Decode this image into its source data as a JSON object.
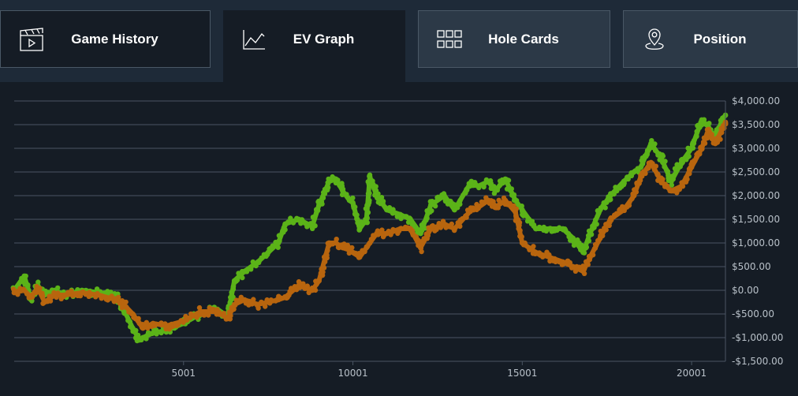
{
  "tabs": [
    {
      "label": "Game History",
      "icon": "clapperboard-icon"
    },
    {
      "label": "EV Graph",
      "icon": "line-chart-icon"
    },
    {
      "label": "Hole Cards",
      "icon": "grid-icon"
    },
    {
      "label": "Position",
      "icon": "location-pin-icon"
    }
  ],
  "colors": {
    "green_series": "#5bb318",
    "orange_series": "#b8650e",
    "grid": "#4a5563",
    "background": "#151c25"
  },
  "chart_data": {
    "type": "scatter",
    "xlabel": "",
    "ylabel": "",
    "xlim": [
      1,
      21000
    ],
    "ylim": [
      -1500,
      4000
    ],
    "x_ticks": [
      5001,
      10001,
      15001,
      20001
    ],
    "x_tick_labels": [
      "5001",
      "10001",
      "15001",
      "20001"
    ],
    "y_ticks": [
      -1500,
      -1000,
      -500,
      0,
      500,
      1000,
      1500,
      2000,
      2500,
      3000,
      3500,
      4000
    ],
    "y_tick_labels": [
      "-$1,500.00",
      "-$1,000.00",
      "-$500.00",
      "$0.00",
      "$500.00",
      "$1,000.00",
      "$1,500.00",
      "$2,000.00",
      "$2,500.00",
      "$3,000.00",
      "$3,500.00",
      "$4,000.00"
    ],
    "grid": true,
    "legend": "none",
    "series": [
      {
        "color": "#5bb318",
        "x": [
          1,
          300,
          500,
          700,
          900,
          1200,
          1500,
          2000,
          2500,
          3000,
          3300,
          3500,
          3700,
          3800,
          4100,
          4500,
          5000,
          5500,
          6000,
          6300,
          6500,
          6800,
          7200,
          7500,
          7800,
          8000,
          8400,
          8800,
          9000,
          9300,
          9500,
          9700,
          9900,
          10000,
          10200,
          10400,
          10500,
          10700,
          11000,
          11400,
          11700,
          12000,
          12300,
          12700,
          13000,
          13500,
          13700,
          14000,
          14200,
          14500,
          14800,
          15000,
          15400,
          15800,
          16200,
          16500,
          16800,
          17000,
          17300,
          17600,
          18000,
          18300,
          18500,
          18800,
          19100,
          19400,
          19700,
          20000,
          20300,
          20500,
          20700,
          20900,
          21000
        ],
        "y": [
          0,
          300,
          -200,
          100,
          -100,
          0,
          -100,
          0,
          -50,
          -100,
          -500,
          -800,
          -1050,
          -1000,
          -900,
          -850,
          -700,
          -500,
          -400,
          -550,
          200,
          400,
          600,
          800,
          1000,
          1400,
          1500,
          1350,
          1800,
          2300,
          2350,
          2100,
          1900,
          1850,
          1300,
          1500,
          2400,
          2000,
          1700,
          1600,
          1500,
          1200,
          1800,
          2000,
          1700,
          2300,
          2200,
          2300,
          2100,
          2350,
          1900,
          1700,
          1300,
          1300,
          1300,
          1100,
          800,
          1200,
          1700,
          2000,
          2300,
          2500,
          2600,
          3100,
          2800,
          2300,
          2700,
          3000,
          3600,
          3450,
          3200,
          3600,
          3700
        ]
      },
      {
        "color": "#b8650e",
        "x": [
          1,
          300,
          500,
          700,
          900,
          1200,
          1500,
          2000,
          2500,
          3000,
          3300,
          3500,
          3700,
          3800,
          4100,
          4500,
          5000,
          5500,
          6000,
          6300,
          6500,
          6800,
          7200,
          7500,
          7800,
          8000,
          8400,
          8800,
          9000,
          9300,
          9500,
          9700,
          9900,
          10000,
          10200,
          10400,
          10500,
          10700,
          11000,
          11400,
          11700,
          12000,
          12300,
          12700,
          13000,
          13500,
          13700,
          14000,
          14200,
          14500,
          14800,
          15000,
          15400,
          15800,
          16200,
          16500,
          16800,
          17000,
          17300,
          17600,
          18000,
          18300,
          18500,
          18800,
          19100,
          19400,
          19700,
          20000,
          20300,
          20500,
          20700,
          20900,
          21000
        ],
        "y": [
          -50,
          0,
          -150,
          50,
          -250,
          -100,
          -100,
          -50,
          -100,
          -200,
          -350,
          -500,
          -700,
          -800,
          -700,
          -750,
          -650,
          -450,
          -450,
          -600,
          -300,
          -200,
          -300,
          -250,
          -200,
          -150,
          100,
          0,
          200,
          1000,
          1000,
          900,
          850,
          800,
          700,
          900,
          1000,
          1200,
          1200,
          1300,
          1300,
          900,
          1300,
          1400,
          1300,
          1700,
          1750,
          1900,
          1750,
          1900,
          1650,
          1000,
          800,
          700,
          600,
          500,
          400,
          700,
          1100,
          1500,
          1700,
          2000,
          2400,
          2700,
          2300,
          2100,
          2200,
          2600,
          3000,
          3400,
          3100,
          3400,
          3550
        ]
      }
    ]
  }
}
